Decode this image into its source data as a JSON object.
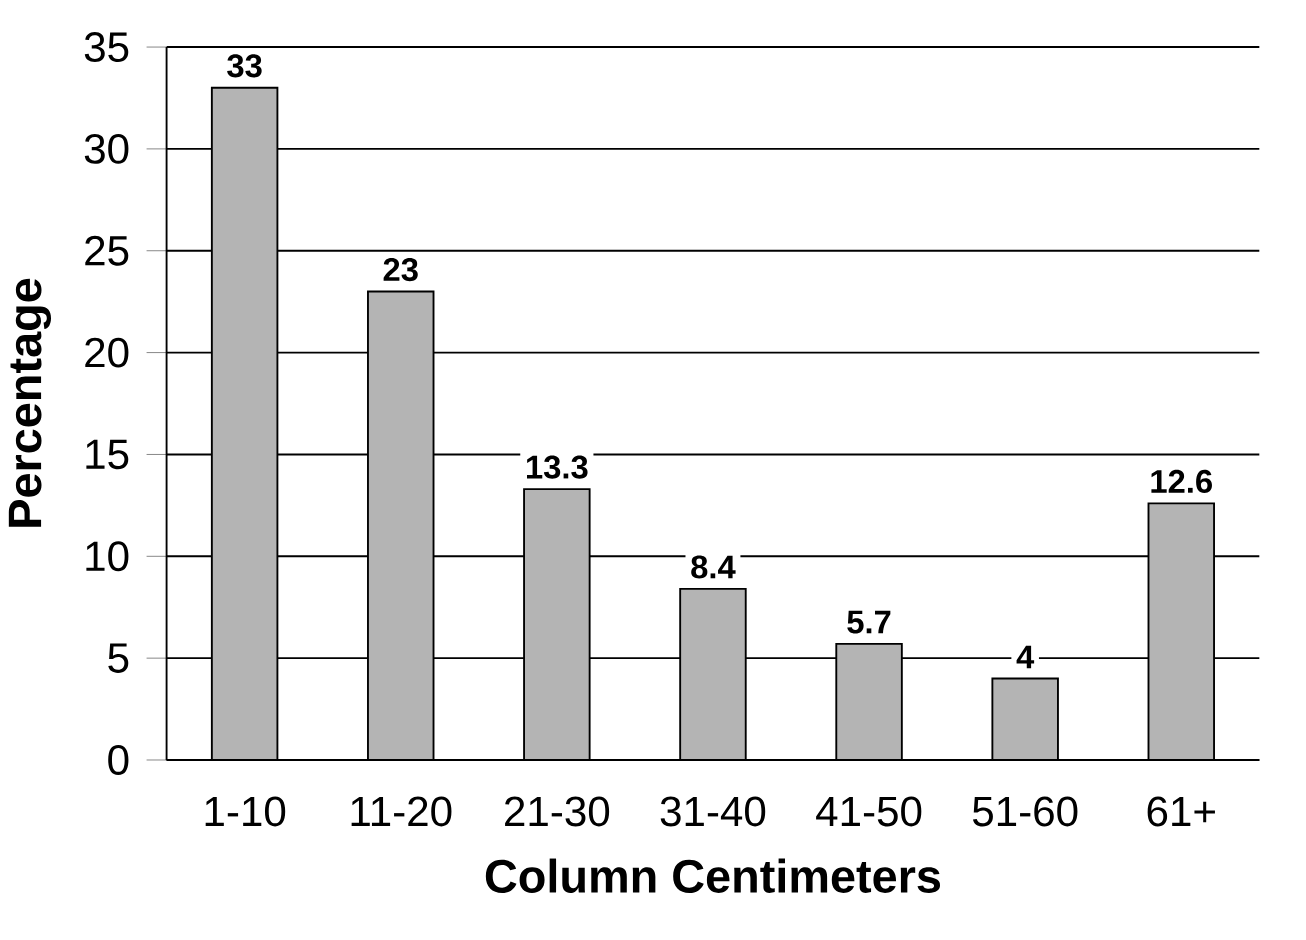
{
  "chart_data": {
    "type": "bar",
    "xlabel": "Column Centimeters",
    "ylabel": "Percentage",
    "categories": [
      "1-10",
      "11-20",
      "21-30",
      "31-40",
      "41-50",
      "51-60",
      "61+"
    ],
    "values": [
      33,
      23,
      13.3,
      8.4,
      5.7,
      4,
      12.6
    ],
    "color": "#b4b4b4",
    "ylim": [
      0,
      35
    ],
    "yticks": [
      0,
      5,
      10,
      15,
      20,
      25,
      30,
      35
    ],
    "grid": "y",
    "data_labels": true
  }
}
